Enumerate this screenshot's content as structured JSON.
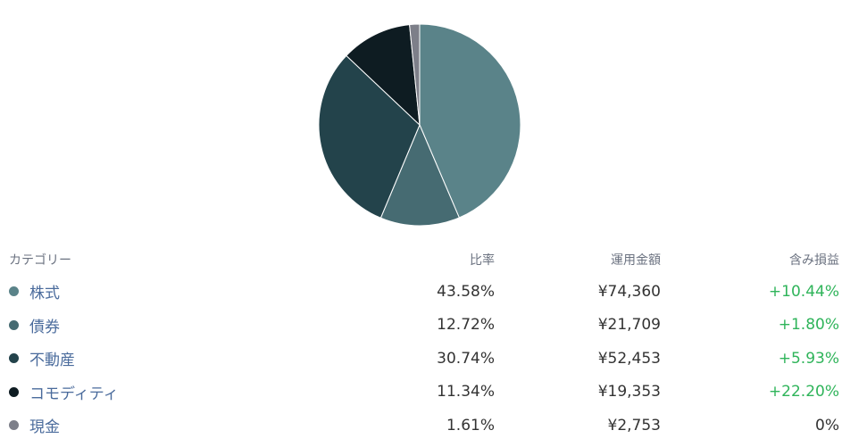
{
  "chart_data": {
    "type": "pie",
    "categories": [
      "株式",
      "債券",
      "不動産",
      "コモディティ",
      "現金"
    ],
    "values": [
      43.58,
      12.72,
      30.74,
      11.34,
      1.61
    ],
    "colors": [
      "#5a8389",
      "#466b72",
      "#23434b",
      "#0e1c22",
      "#7d7f89"
    ]
  },
  "table": {
    "headers": {
      "category": "カテゴリー",
      "ratio": "比率",
      "amount": "運用金額",
      "pl": "含み損益"
    },
    "rows": [
      {
        "name": "株式",
        "ratio": "43.58%",
        "amount": "¥74,360",
        "pl": "+10.44%",
        "color": "#5a8389",
        "pl_sign": "pos"
      },
      {
        "name": "債券",
        "ratio": "12.72%",
        "amount": "¥21,709",
        "pl": "+1.80%",
        "color": "#466b72",
        "pl_sign": "pos"
      },
      {
        "name": "不動産",
        "ratio": "30.74%",
        "amount": "¥52,453",
        "pl": "+5.93%",
        "color": "#23434b",
        "pl_sign": "pos"
      },
      {
        "name": "コモディティ",
        "ratio": "11.34%",
        "amount": "¥19,353",
        "pl": "+22.20%",
        "color": "#0e1c22",
        "pl_sign": "pos"
      },
      {
        "name": "現金",
        "ratio": "1.61%",
        "amount": "¥2,753",
        "pl": "0%",
        "color": "#7d7f89",
        "pl_sign": "zero"
      }
    ]
  }
}
